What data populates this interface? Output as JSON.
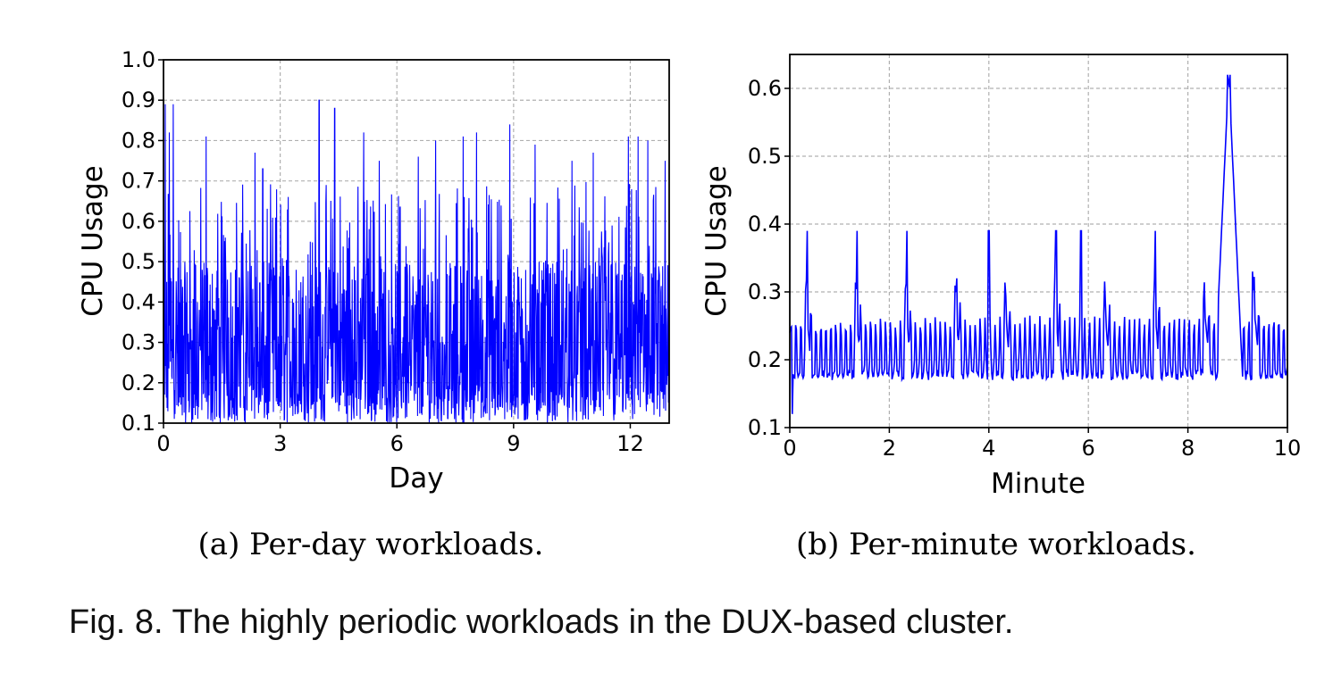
{
  "chart_data": [
    {
      "type": "line",
      "subcaption": "(a) Per-day workloads.",
      "xlabel": "Day",
      "ylabel": "CPU Usage",
      "xlim": [
        0,
        13
      ],
      "ylim": [
        0.1,
        1.0
      ],
      "xticks": [
        "0",
        "3",
        "6",
        "9",
        "12"
      ],
      "yticks": [
        "0.1",
        "0.2",
        "0.3",
        "0.4",
        "0.5",
        "0.6",
        "0.7",
        "0.8",
        "0.9",
        "1.0"
      ],
      "grid": true,
      "color": "#0000ff",
      "series": [
        {
          "description_of_data": "dense high-frequency CPU usage trace over 13 days; values mostly between 0.1 and 0.55 with frequent spikes",
          "x": [
            0,
            0.05,
            0.15,
            0.25,
            1.1,
            2.35,
            2.55,
            4.0,
            4.4,
            5.15,
            5.55,
            6.55,
            7.0,
            7.7,
            8.05,
            8.9,
            9.55,
            10.5,
            11.05,
            11.95,
            12.2,
            12.45,
            12.9
          ],
          "y": [
            0.55,
            0.89,
            0.82,
            0.89,
            0.81,
            0.77,
            0.73,
            0.9,
            0.88,
            0.82,
            0.75,
            0.76,
            0.8,
            0.81,
            0.82,
            0.84,
            0.79,
            0.75,
            0.77,
            0.81,
            0.81,
            0.8,
            0.75
          ]
        }
      ]
    },
    {
      "type": "line",
      "subcaption": "(b) Per-minute workloads.",
      "xlabel": "Minute",
      "ylabel": "CPU Usage",
      "xlim": [
        0,
        10
      ],
      "ylim": [
        0.1,
        0.65
      ],
      "xticks": [
        "0",
        "2",
        "4",
        "6",
        "8",
        "10"
      ],
      "yticks": [
        "0.1",
        "0.2",
        "0.3",
        "0.4",
        "0.5",
        "0.6"
      ],
      "grid": true,
      "color": "#0000ff",
      "series": [
        {
          "description_of_data": "periodic CPU usage with ~0.2 baseline, peaks near 0.39 every minute, large spike ~0.62 near minute 8.8",
          "x": [
            0.0,
            0.05,
            0.35,
            1.35,
            2.35,
            3.35,
            4.0,
            5.35,
            5.85,
            7.35,
            8.8,
            8.85,
            9.3,
            10.0
          ],
          "y": [
            0.24,
            0.12,
            0.39,
            0.39,
            0.39,
            0.32,
            0.39,
            0.39,
            0.39,
            0.39,
            0.62,
            0.62,
            0.33,
            0.19
          ]
        }
      ]
    }
  ],
  "figure_caption": "Fig. 8. The highly periodic workloads in the DUX-based cluster."
}
